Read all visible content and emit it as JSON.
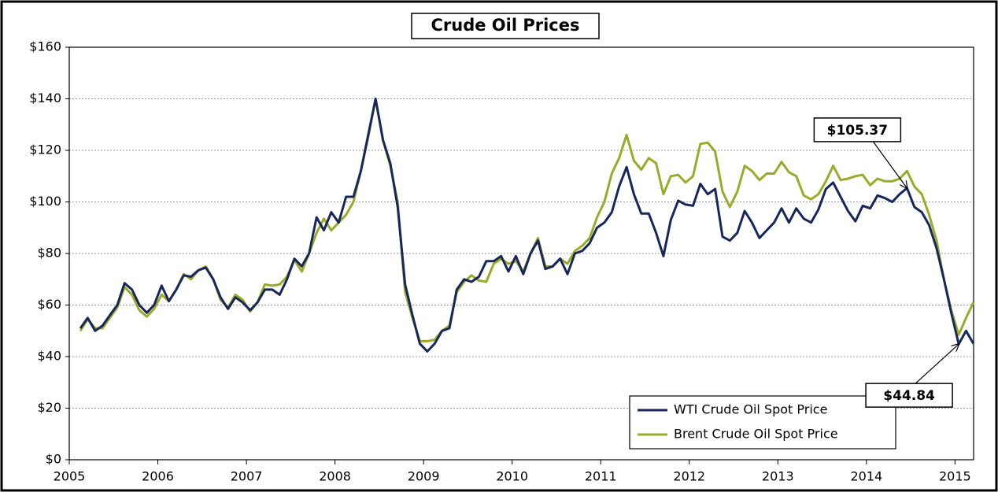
{
  "chart_data": {
    "type": "line",
    "title": "Crude Oil Prices",
    "x": [
      2005.125,
      2005.208,
      2005.292,
      2005.375,
      2005.458,
      2005.542,
      2005.625,
      2005.708,
      2005.792,
      2005.875,
      2005.958,
      2006.042,
      2006.125,
      2006.208,
      2006.292,
      2006.375,
      2006.458,
      2006.542,
      2006.625,
      2006.708,
      2006.792,
      2006.875,
      2006.958,
      2007.042,
      2007.125,
      2007.208,
      2007.292,
      2007.375,
      2007.458,
      2007.542,
      2007.625,
      2007.708,
      2007.792,
      2007.875,
      2007.958,
      2008.042,
      2008.125,
      2008.208,
      2008.292,
      2008.375,
      2008.458,
      2008.542,
      2008.625,
      2008.708,
      2008.792,
      2008.875,
      2008.958,
      2009.042,
      2009.125,
      2009.208,
      2009.292,
      2009.375,
      2009.458,
      2009.542,
      2009.625,
      2009.708,
      2009.792,
      2009.875,
      2009.958,
      2010.042,
      2010.125,
      2010.208,
      2010.292,
      2010.375,
      2010.458,
      2010.542,
      2010.625,
      2010.708,
      2010.792,
      2010.875,
      2010.958,
      2011.042,
      2011.125,
      2011.208,
      2011.292,
      2011.375,
      2011.458,
      2011.542,
      2011.625,
      2011.708,
      2011.792,
      2011.875,
      2011.958,
      2012.042,
      2012.125,
      2012.208,
      2012.292,
      2012.375,
      2012.458,
      2012.542,
      2012.625,
      2012.708,
      2012.792,
      2012.875,
      2012.958,
      2013.042,
      2013.125,
      2013.208,
      2013.292,
      2013.375,
      2013.458,
      2013.542,
      2013.625,
      2013.708,
      2013.792,
      2013.875,
      2013.958,
      2014.042,
      2014.125,
      2014.208,
      2014.292,
      2014.375,
      2014.458,
      2014.542,
      2014.625,
      2014.708,
      2014.792,
      2014.875,
      2014.958,
      2015.042,
      2015.125,
      2015.208
    ],
    "series": [
      {
        "name": "WTI Crude Oil Spot Price",
        "color": "#17275c",
        "values": [
          51,
          55,
          50,
          52,
          56,
          60,
          68.5,
          66,
          60,
          57,
          60,
          67.5,
          61.5,
          66,
          71.5,
          71,
          73.5,
          74.5,
          70,
          63,
          58.5,
          63,
          61,
          58,
          61,
          66,
          66,
          64,
          70,
          78,
          75,
          80,
          94,
          89,
          96,
          92,
          102,
          102,
          112,
          126,
          140,
          124,
          115,
          98,
          68,
          56,
          45,
          42,
          45,
          50,
          51,
          66,
          70,
          69,
          71,
          77,
          77,
          79,
          73,
          79,
          72,
          80,
          85,
          74,
          75,
          78,
          72,
          80,
          81,
          84,
          90,
          92,
          96,
          106,
          113.5,
          103,
          95.5,
          95.5,
          88,
          79,
          93,
          100.5,
          99,
          98.5,
          107,
          103,
          105,
          86.5,
          85,
          88,
          96.5,
          92,
          86,
          89,
          92,
          97.5,
          92,
          97.5,
          93.5,
          92,
          97,
          105,
          107.5,
          102,
          96.5,
          92.5,
          98.5,
          97.5,
          102.5,
          101.5,
          100,
          103,
          105.37,
          98,
          96,
          91,
          82,
          70,
          57,
          44.84,
          50,
          45
        ]
      },
      {
        "name": "Brent Crude Oil Spot Price",
        "color": "#9aab2a",
        "values": [
          50,
          54.5,
          51,
          51,
          55,
          59,
          67,
          64,
          58,
          55.5,
          58.5,
          64,
          61.5,
          66,
          72,
          70,
          73.5,
          75,
          70,
          62,
          59,
          64,
          62,
          57.5,
          61,
          68,
          67.5,
          68,
          71,
          77.5,
          73,
          80,
          88,
          93.5,
          89,
          92,
          95,
          100,
          112,
          125,
          140,
          124,
          114,
          100,
          65,
          55,
          46,
          46,
          46.5,
          50,
          52,
          65,
          69,
          71.5,
          69.5,
          69,
          76,
          78,
          76,
          77,
          73,
          80,
          86,
          75,
          75,
          78,
          76,
          81,
          83,
          86,
          94,
          100,
          111,
          117,
          126,
          116,
          112.5,
          117,
          115,
          103,
          110,
          110.5,
          107.5,
          110,
          122.5,
          123,
          119.5,
          104,
          98,
          104,
          114,
          112,
          108.5,
          111,
          111,
          115.5,
          111.5,
          110,
          102.5,
          101,
          103,
          108,
          114,
          108.5,
          109,
          110,
          110.5,
          106.5,
          109,
          108,
          108,
          109,
          112,
          106,
          103,
          95,
          85,
          70,
          58,
          48.5,
          55,
          61
        ]
      }
    ],
    "xlim": [
      2005,
      2015.21
    ],
    "xticks": [
      2005,
      2006,
      2007,
      2008,
      2009,
      2010,
      2011,
      2012,
      2013,
      2014,
      2015
    ],
    "ylim": [
      0,
      160
    ],
    "yticks": [
      {
        "value": 0,
        "label": "$0"
      },
      {
        "value": 20,
        "label": "$20"
      },
      {
        "value": 40,
        "label": "$40"
      },
      {
        "value": 60,
        "label": "$60"
      },
      {
        "value": 80,
        "label": "$80"
      },
      {
        "value": 100,
        "label": "$100"
      },
      {
        "value": 120,
        "label": "$120"
      },
      {
        "value": 140,
        "label": "$140"
      },
      {
        "value": 160,
        "label": "$160"
      }
    ],
    "grid": true,
    "legend": "lower right",
    "annotations": [
      {
        "text": "$105.37",
        "x": 2014.458,
        "y": 105.37
      },
      {
        "text": "$44.84",
        "x": 2015.042,
        "y": 44.84
      }
    ]
  }
}
